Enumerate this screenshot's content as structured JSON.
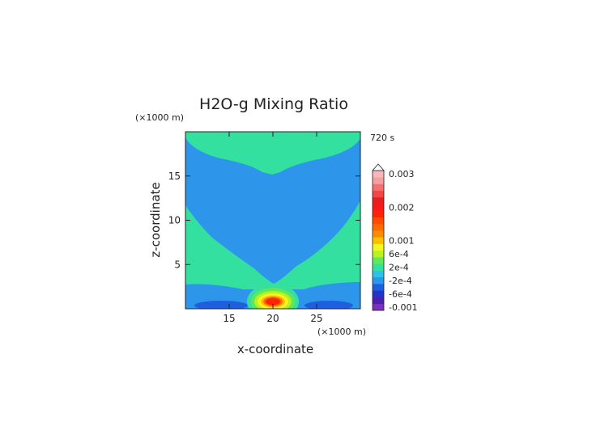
{
  "chart_data": {
    "type": "heatmap",
    "title": "H2O-g Mixing Ratio",
    "xlabel": "x-coordinate",
    "ylabel": "z-coordinate",
    "x_unit": "(×1000 m)",
    "y_unit": "(×1000 m)",
    "time_label": "720 s",
    "xlim": [
      10,
      30
    ],
    "ylim": [
      0,
      20
    ],
    "x_ticks": [
      15,
      20,
      25
    ],
    "y_ticks": [
      5,
      10,
      15
    ],
    "legend_placement": "right",
    "grid": false,
    "colorbar": {
      "levels": [
        {
          "color": "#7b2fbe"
        },
        {
          "color": "#4b1fb0"
        },
        {
          "color": "#2433c8"
        },
        {
          "color": "#1e5fe0"
        },
        {
          "color": "#2d95ea"
        },
        {
          "color": "#2fc2e8"
        },
        {
          "color": "#34e0a0"
        },
        {
          "color": "#5ee85a"
        },
        {
          "color": "#b8f020"
        },
        {
          "color": "#f5f520"
        },
        {
          "color": "#ffc000"
        },
        {
          "color": "#ff8c00"
        },
        {
          "color": "#ff6a00"
        },
        {
          "color": "#ff4a00"
        },
        {
          "color": "#ff2400"
        },
        {
          "color": "#f81818"
        },
        {
          "color": "#e81e1e"
        },
        {
          "color": "#f04848"
        },
        {
          "color": "#f27070"
        },
        {
          "color": "#f5a0a0"
        },
        {
          "color": "#f8b8b8"
        }
      ],
      "labels": [
        "0.003",
        "0.002",
        "0.001",
        "6e-4",
        "2e-4",
        "-2e-4",
        "-6e-4",
        "-0.001"
      ],
      "label_levels": [
        21,
        16,
        11,
        9,
        7,
        5,
        3,
        1
      ]
    },
    "regions": {
      "background": {
        "color": "#2d95ea"
      },
      "top_band": {
        "color": "#34e0a0"
      },
      "side_wedge": {
        "color": "#34e0a0"
      },
      "low_anomaly_left": {
        "color": "#1e5fe0",
        "x": 13.5,
        "z": 0.9
      },
      "low_anomaly_right": {
        "color": "#1e5fe0",
        "x": 26.3,
        "z": 0.9
      },
      "maximum_core": {
        "x": 20,
        "z": 1.0
      }
    }
  }
}
